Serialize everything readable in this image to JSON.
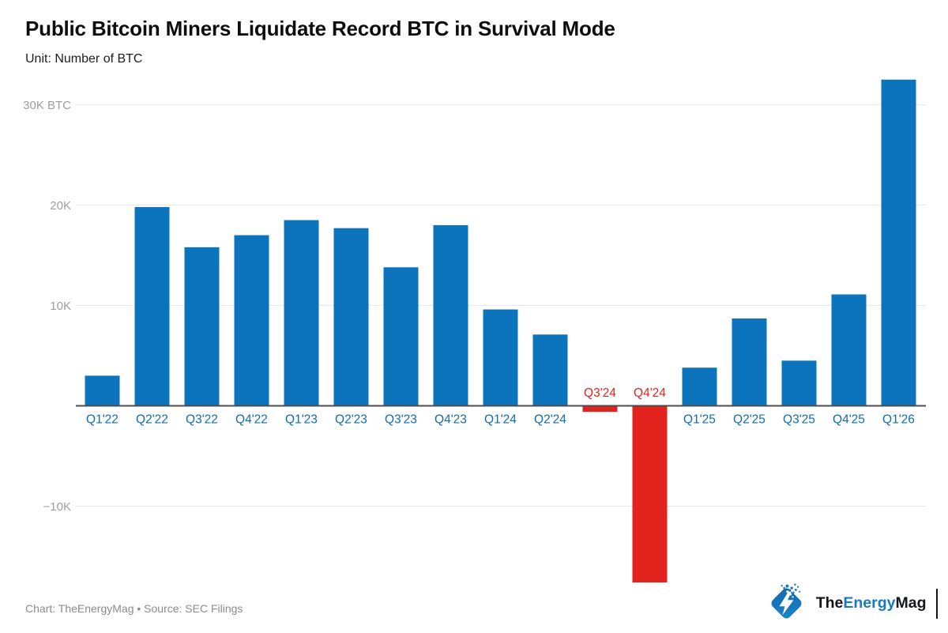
{
  "header": {
    "title": "Public Bitcoin Miners Liquidate Record BTC in Survival Mode",
    "subtitle": "Unit: Number of BTC"
  },
  "footer": {
    "credit": "Chart: TheEnergyMag • Source: SEC Filings"
  },
  "logo": {
    "icon": "lightning-bolt-diamond",
    "part_the": "The",
    "part_energy": "Energy",
    "part_mag": "Mag"
  },
  "colors": {
    "bar_positive": "#0b74bc",
    "bar_negative": "#e2231d",
    "x_label_blue": "#0f6cb0",
    "x_label_red": "#e2231d",
    "grid": "#e8e8e8",
    "axis": "#4d4d4d",
    "y_tick_text": "#9e9e9e",
    "logo_blue": "#1b78bb"
  },
  "chart_data": {
    "type": "bar",
    "title": "Public Bitcoin Miners Liquidate Record BTC in Survival Mode",
    "unit": "BTC",
    "xlabel": "",
    "ylabel": "Number of BTC",
    "grid": true,
    "legend": false,
    "categories": [
      "Q1'22",
      "Q2'22",
      "Q3'22",
      "Q4'22",
      "Q1'23",
      "Q2'23",
      "Q3'23",
      "Q4'23",
      "Q1'24",
      "Q2'24",
      "Q3'24",
      "Q4'24",
      "Q1'25",
      "Q2'25",
      "Q3'25",
      "Q4'25",
      "Q1'26"
    ],
    "values": [
      3000,
      19800,
      15800,
      17000,
      18500,
      17700,
      13800,
      18000,
      9600,
      7100,
      -600,
      -17600,
      3800,
      8700,
      4500,
      11100,
      32500
    ],
    "y_ticks": [
      {
        "value": 30000,
        "label": "30K BTC"
      },
      {
        "value": 20000,
        "label": "20K"
      },
      {
        "value": 10000,
        "label": "10K"
      },
      {
        "value": -10000,
        "label": "−10K"
      }
    ],
    "ylim": [
      -19000,
      34000
    ],
    "negative_label_position": "above-axis"
  }
}
